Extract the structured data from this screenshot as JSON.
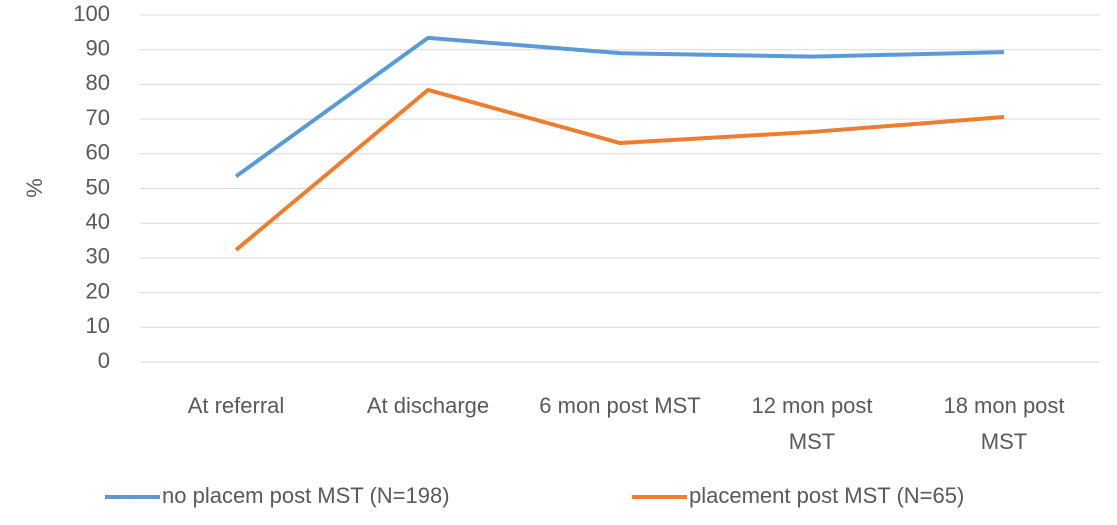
{
  "chart_data": {
    "type": "line",
    "categories": [
      "At referral",
      "At discharge",
      "6 mon post MST",
      "12 mon post MST",
      "18 mon post MST"
    ],
    "series": [
      {
        "name": "no placem post MST (N=198)",
        "color": "#5b9bd5",
        "values": [
          53.5,
          93.4,
          89,
          88,
          89.3
        ]
      },
      {
        "name": "placement post MST (N=65)",
        "color": "#ed7d31",
        "values": [
          32.3,
          78.4,
          63.1,
          66.3,
          70.6
        ]
      }
    ],
    "y_label": "%",
    "ylim": [
      0,
      100
    ],
    "yticks": [
      0,
      10,
      20,
      30,
      40,
      50,
      60,
      70,
      80,
      90,
      100
    ],
    "grid": true,
    "legend": "bottom"
  }
}
